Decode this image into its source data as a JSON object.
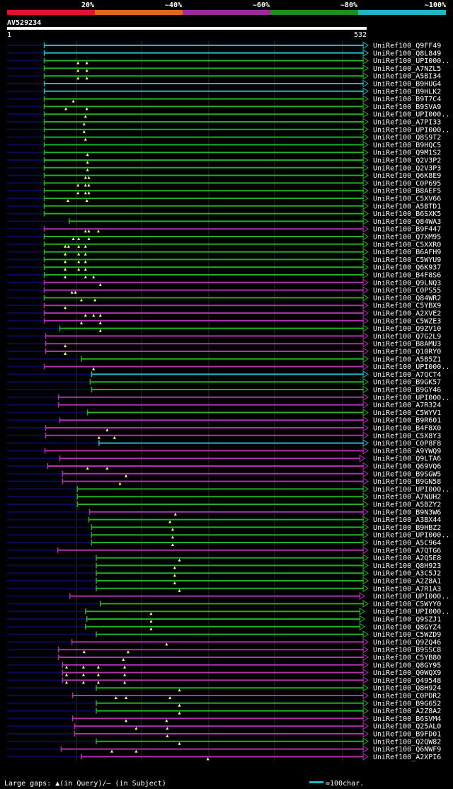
{
  "query_id": "AV529234",
  "query_start": "1",
  "query_end": "532",
  "identity_scale": {
    "labels": [
      "20%",
      "~40%",
      "~60%",
      "~80%",
      "~100%"
    ],
    "colors": [
      "#e8112a",
      "#e06a1a",
      "#9b2a9b",
      "#1e8f1e",
      "#1ab8c8"
    ]
  },
  "colors": {
    "cyan": "#1ab8c8",
    "green": "#21b021",
    "magenta": "#b030b0",
    "query_line": "#0b0b55",
    "background": "#000000"
  },
  "footer": {
    "legend_text": "Large gaps: ▲(in Query)/– (in Subject)",
    "scale_text": "=100char."
  },
  "hits": [
    {
      "label": "UniRef100_Q9FF49",
      "color": "cyan",
      "start": 55,
      "end": 532,
      "triangles": []
    },
    {
      "label": "UniRef100_Q8L849",
      "color": "cyan",
      "start": 55,
      "end": 532,
      "triangles": []
    },
    {
      "label": "UniRef100_UPI000..",
      "color": "green",
      "start": 55,
      "end": 532,
      "triangles": [
        105,
        118
      ]
    },
    {
      "label": "UniRef100_A7NZL5",
      "color": "green",
      "start": 55,
      "end": 532,
      "triangles": [
        105,
        118
      ]
    },
    {
      "label": "UniRef100_A5BI34",
      "color": "green",
      "start": 55,
      "end": 532,
      "triangles": [
        105,
        118
      ]
    },
    {
      "label": "UniRef100_B9HUG4",
      "color": "cyan",
      "start": 55,
      "end": 532,
      "triangles": []
    },
    {
      "label": "UniRef100_B9HLK2",
      "color": "cyan",
      "start": 55,
      "end": 532,
      "triangles": []
    },
    {
      "label": "UniRef100_B9T7C4",
      "color": "green",
      "start": 55,
      "end": 532,
      "triangles": [
        98
      ]
    },
    {
      "label": "UniRef100_B9SVA9",
      "color": "green",
      "start": 55,
      "end": 532,
      "triangles": [
        87,
        118
      ]
    },
    {
      "label": "UniRef100_UPI000..",
      "color": "green",
      "start": 55,
      "end": 532,
      "triangles": [
        116
      ]
    },
    {
      "label": "UniRef100_A7PI33",
      "color": "green",
      "start": 55,
      "end": 532,
      "triangles": [
        114
      ]
    },
    {
      "label": "UniRef100_UPI000..",
      "color": "green",
      "start": 55,
      "end": 532,
      "triangles": [
        114
      ]
    },
    {
      "label": "UniRef100_Q8S9T2",
      "color": "green",
      "start": 55,
      "end": 532,
      "triangles": [
        116
      ]
    },
    {
      "label": "UniRef100_B9HQC5",
      "color": "green",
      "start": 55,
      "end": 532,
      "triangles": []
    },
    {
      "label": "UniRef100_Q9M1S2",
      "color": "green",
      "start": 55,
      "end": 532,
      "triangles": [
        119
      ]
    },
    {
      "label": "UniRef100_Q2V3P2",
      "color": "green",
      "start": 55,
      "end": 532,
      "triangles": [
        119
      ]
    },
    {
      "label": "UniRef100_Q2V3P3",
      "color": "green",
      "start": 55,
      "end": 532,
      "triangles": [
        119
      ]
    },
    {
      "label": "UniRef100_Q6K8E9",
      "color": "green",
      "start": 55,
      "end": 532,
      "triangles": [
        116,
        121
      ]
    },
    {
      "label": "UniRef100_C0P695",
      "color": "green",
      "start": 55,
      "end": 532,
      "triangles": [
        105,
        116,
        121
      ]
    },
    {
      "label": "UniRef100_B8AEF5",
      "color": "green",
      "start": 55,
      "end": 532,
      "triangles": [
        105,
        116,
        121
      ]
    },
    {
      "label": "UniRef100_C5XV66",
      "color": "green",
      "start": 55,
      "end": 532,
      "triangles": [
        90,
        118
      ]
    },
    {
      "label": "UniRef100_A5BTD1",
      "color": "green",
      "start": 55,
      "end": 532,
      "triangles": []
    },
    {
      "label": "UniRef100_B6SXK5",
      "color": "green",
      "start": 55,
      "end": 532,
      "triangles": []
    },
    {
      "label": "UniRef100_Q84WA3",
      "color": "green",
      "start": 92,
      "end": 532,
      "triangles": []
    },
    {
      "label": "UniRef100_B9F447",
      "color": "magenta",
      "start": 55,
      "end": 532,
      "triangles": [
        116,
        121,
        135
      ]
    },
    {
      "label": "UniRef100_Q7XM95",
      "color": "green",
      "start": 55,
      "end": 532,
      "triangles": [
        98,
        106,
        121
      ]
    },
    {
      "label": "UniRef100_C5XXR0",
      "color": "green",
      "start": 55,
      "end": 532,
      "triangles": [
        86,
        91,
        106,
        116
      ]
    },
    {
      "label": "UniRef100_B6AFH9",
      "color": "green",
      "start": 55,
      "end": 532,
      "triangles": [
        86,
        106,
        116
      ]
    },
    {
      "label": "UniRef100_C5WYU9",
      "color": "green",
      "start": 55,
      "end": 532,
      "triangles": [
        86,
        106,
        116
      ]
    },
    {
      "label": "UniRef100_Q6K937",
      "color": "green",
      "start": 55,
      "end": 532,
      "triangles": [
        86,
        106,
        116
      ]
    },
    {
      "label": "UniRef100_B4F8S6",
      "color": "green",
      "start": 55,
      "end": 532,
      "triangles": [
        86,
        116,
        128
      ]
    },
    {
      "label": "UniRef100_Q9LNQ3",
      "color": "magenta",
      "start": 55,
      "end": 532,
      "triangles": [
        138
      ]
    },
    {
      "label": "UniRef100_C0PS55",
      "color": "magenta",
      "start": 55,
      "end": 532,
      "triangles": [
        96,
        101
      ]
    },
    {
      "label": "UniRef100_Q84WR2",
      "color": "green",
      "start": 55,
      "end": 532,
      "triangles": [
        110,
        130
      ]
    },
    {
      "label": "UniRef100_C5YBX9",
      "color": "magenta",
      "start": 55,
      "end": 532,
      "triangles": [
        86
      ]
    },
    {
      "label": "UniRef100_A2XVE2",
      "color": "magenta",
      "start": 55,
      "end": 532,
      "triangles": [
        116,
        128,
        138
      ]
    },
    {
      "label": "UniRef100_C5WZE3",
      "color": "magenta",
      "start": 55,
      "end": 532,
      "triangles": [
        110,
        138
      ]
    },
    {
      "label": "UniRef100_Q9ZV10",
      "color": "green",
      "start": 78,
      "end": 532,
      "triangles": [
        138
      ]
    },
    {
      "label": "UniRef100_Q7G2L9",
      "color": "magenta",
      "start": 57,
      "end": 532,
      "triangles": []
    },
    {
      "label": "UniRef100_B8AMU3",
      "color": "magenta",
      "start": 57,
      "end": 532,
      "triangles": [
        86
      ]
    },
    {
      "label": "UniRef100_Q10RY0",
      "color": "magenta",
      "start": 57,
      "end": 532,
      "triangles": [
        86
      ]
    },
    {
      "label": "UniRef100_A5B5Z1",
      "color": "green",
      "start": 110,
      "end": 532,
      "triangles": []
    },
    {
      "label": "UniRef100_UPI000..",
      "color": "magenta",
      "start": 55,
      "end": 532,
      "triangles": [
        128
      ]
    },
    {
      "label": "UniRef100_A7QCT4",
      "color": "cyan",
      "start": 125,
      "end": 532,
      "triangles": []
    },
    {
      "label": "UniRef100_B9GK57",
      "color": "green",
      "start": 123,
      "end": 532,
      "triangles": []
    },
    {
      "label": "UniRef100_B9GY46",
      "color": "green",
      "start": 125,
      "end": 532,
      "triangles": []
    },
    {
      "label": "UniRef100_UPI000..",
      "color": "magenta",
      "start": 76,
      "end": 532,
      "triangles": []
    },
    {
      "label": "UniRef100_A7R324",
      "color": "magenta",
      "start": 76,
      "end": 532,
      "triangles": []
    },
    {
      "label": "UniRef100_C5WYV1",
      "color": "green",
      "start": 119,
      "end": 532,
      "triangles": []
    },
    {
      "label": "UniRef100_B9R601",
      "color": "magenta",
      "start": 78,
      "end": 532,
      "triangles": []
    },
    {
      "label": "UniRef100_B4F8X0",
      "color": "magenta",
      "start": 57,
      "end": 532,
      "triangles": [
        148
      ]
    },
    {
      "label": "UniRef100_C5X8Y3",
      "color": "magenta",
      "start": 57,
      "end": 532,
      "triangles": [
        136,
        159
      ]
    },
    {
      "label": "UniRef100_C0P8F8",
      "color": "cyan",
      "start": 136,
      "end": 532,
      "triangles": []
    },
    {
      "label": "UniRef100_A9YWQ9",
      "color": "magenta",
      "start": 56,
      "end": 532,
      "triangles": []
    },
    {
      "label": "UniRef100_Q9LTA6",
      "color": "magenta",
      "start": 78,
      "end": 527,
      "triangles": []
    },
    {
      "label": "UniRef100_Q69VQ6",
      "color": "magenta",
      "start": 60,
      "end": 532,
      "triangles": [
        119,
        148
      ]
    },
    {
      "label": "UniRef100_B9SGW5",
      "color": "magenta",
      "start": 82,
      "end": 532,
      "triangles": [
        176
      ]
    },
    {
      "label": "UniRef100_B9GN58",
      "color": "magenta",
      "start": 82,
      "end": 532,
      "triangles": [
        167
      ]
    },
    {
      "label": "UniRef100_UPI000..",
      "color": "green",
      "start": 104,
      "end": 532,
      "triangles": []
    },
    {
      "label": "UniRef100_A7NUH2",
      "color": "green",
      "start": 104,
      "end": 532,
      "triangles": []
    },
    {
      "label": "UniRef100_A5BZY2",
      "color": "green",
      "start": 104,
      "end": 532,
      "triangles": []
    },
    {
      "label": "UniRef100_B9N3W6",
      "color": "magenta",
      "start": 122,
      "end": 532,
      "triangles": [
        249
      ]
    },
    {
      "label": "UniRef100_A3BX44",
      "color": "green",
      "start": 121,
      "end": 532,
      "triangles": [
        241
      ]
    },
    {
      "label": "UniRef100_B9HBZ2",
      "color": "green",
      "start": 125,
      "end": 532,
      "triangles": [
        245
      ]
    },
    {
      "label": "UniRef100_UPI000..",
      "color": "green",
      "start": 125,
      "end": 532,
      "triangles": [
        245
      ]
    },
    {
      "label": "UniRef100_A5C964",
      "color": "green",
      "start": 125,
      "end": 532,
      "triangles": [
        245
      ]
    },
    {
      "label": "UniRef100_A7QTG6",
      "color": "magenta",
      "start": 75,
      "end": 532,
      "triangles": []
    },
    {
      "label": "UniRef100_A2Q5E8",
      "color": "green",
      "start": 132,
      "end": 532,
      "triangles": [
        255
      ]
    },
    {
      "label": "UniRef100_Q8H923",
      "color": "green",
      "start": 132,
      "end": 532,
      "triangles": [
        248
      ]
    },
    {
      "label": "UniRef100_A3C5J2",
      "color": "green",
      "start": 132,
      "end": 532,
      "triangles": [
        248
      ]
    },
    {
      "label": "UniRef100_A2Z8A1",
      "color": "green",
      "start": 132,
      "end": 532,
      "triangles": [
        248
      ]
    },
    {
      "label": "UniRef100_A7R1A3",
      "color": "green",
      "start": 132,
      "end": 532,
      "triangles": [
        255
      ]
    },
    {
      "label": "UniRef100_UPI000..",
      "color": "magenta",
      "start": 93,
      "end": 527,
      "triangles": []
    },
    {
      "label": "UniRef100_C5WYY0",
      "color": "green",
      "start": 138,
      "end": 532,
      "triangles": []
    },
    {
      "label": "UniRef100_UPI000..",
      "color": "green",
      "start": 116,
      "end": 527,
      "triangles": [
        213
      ]
    },
    {
      "label": "UniRef100_Q9SZJ1",
      "color": "green",
      "start": 118,
      "end": 527,
      "triangles": [
        213
      ]
    },
    {
      "label": "UniRef100_Q8GYZ4",
      "color": "green",
      "start": 116,
      "end": 527,
      "triangles": [
        213
      ]
    },
    {
      "label": "UniRef100_C5WZD9",
      "color": "green",
      "start": 132,
      "end": 532,
      "triangles": []
    },
    {
      "label": "UniRef100_Q9ZQ46",
      "color": "magenta",
      "start": 96,
      "end": 532,
      "triangles": [
        236
      ]
    },
    {
      "label": "UniRef100_B9SSC8",
      "color": "magenta",
      "start": 76,
      "end": 532,
      "triangles": [
        114,
        179
      ]
    },
    {
      "label": "UniRef100_C5YB80",
      "color": "magenta",
      "start": 76,
      "end": 532,
      "triangles": [
        172
      ]
    },
    {
      "label": "UniRef100_Q8GY95",
      "color": "magenta",
      "start": 82,
      "end": 532,
      "triangles": [
        88,
        113,
        135,
        174
      ]
    },
    {
      "label": "UniRef100_Q0WQX9",
      "color": "magenta",
      "start": 82,
      "end": 532,
      "triangles": [
        88,
        113,
        135,
        174
      ]
    },
    {
      "label": "UniRef100_Q49548",
      "color": "magenta",
      "start": 82,
      "end": 532,
      "triangles": [
        88,
        113,
        135,
        174
      ]
    },
    {
      "label": "UniRef100_Q8H924",
      "color": "green",
      "start": 132,
      "end": 532,
      "triangles": [
        255
      ]
    },
    {
      "label": "UniRef100_C0PDR2",
      "color": "magenta",
      "start": 97,
      "end": 532,
      "triangles": [
        161,
        176,
        241
      ]
    },
    {
      "label": "UniRef100_B9G652",
      "color": "green",
      "start": 132,
      "end": 532,
      "triangles": [
        255
      ]
    },
    {
      "label": "UniRef100_A2Z8A2",
      "color": "green",
      "start": 132,
      "end": 532,
      "triangles": [
        255
      ]
    },
    {
      "label": "UniRef100_B6SVM4",
      "color": "magenta",
      "start": 97,
      "end": 532,
      "triangles": [
        176,
        236
      ]
    },
    {
      "label": "UniRef100_Q25AL0",
      "color": "magenta",
      "start": 100,
      "end": 532,
      "triangles": [
        191,
        237
      ]
    },
    {
      "label": "UniRef100_B9FD01",
      "color": "magenta",
      "start": 100,
      "end": 532,
      "triangles": [
        237
      ]
    },
    {
      "label": "UniRef100_Q2QW82",
      "color": "green",
      "start": 132,
      "end": 532,
      "triangles": [
        255
      ]
    },
    {
      "label": "UniRef100_Q6NWF9",
      "color": "magenta",
      "start": 80,
      "end": 532,
      "triangles": [
        155,
        191
      ]
    },
    {
      "label": "UniRef100_A2XPI6",
      "color": "magenta",
      "start": 110,
      "end": 532,
      "triangles": [
        297
      ]
    }
  ]
}
